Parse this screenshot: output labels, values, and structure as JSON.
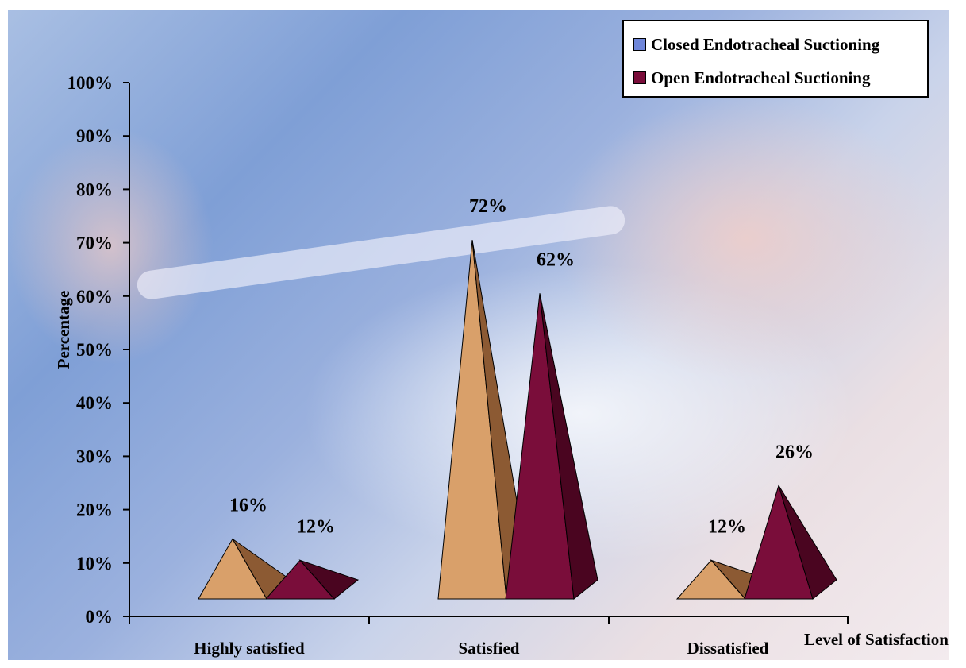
{
  "chart_data": {
    "type": "bar",
    "bar_shape": "pyramid-3d",
    "categories": [
      "Highly satisfied",
      "Satisfied",
      "Dissatisfied"
    ],
    "series": [
      {
        "name": "Closed Endotracheal Suctioning",
        "values": [
          16,
          72,
          12
        ],
        "labels": [
          "16%",
          "72%",
          "12%"
        ],
        "color": "#d9a06a",
        "shade": "#8c5a33"
      },
      {
        "name": "Open Endotracheal Suctioning",
        "values": [
          12,
          62,
          26
        ],
        "labels": [
          "12%",
          "62%",
          "26%"
        ],
        "color": "#7a0d3a",
        "shade": "#4a0520"
      }
    ],
    "legend_swatch_colors": [
      "#6f86d9",
      "#7a0d3a"
    ],
    "xlabel": "Level of Satisfaction",
    "ylabel": "Percentage",
    "ylim": [
      0,
      100
    ],
    "yticks": [
      "0%",
      "10%",
      "20%",
      "30%",
      "40%",
      "50%",
      "60%",
      "70%",
      "80%",
      "90%",
      "100%"
    ],
    "legend_position": "top-right",
    "grid": false
  }
}
